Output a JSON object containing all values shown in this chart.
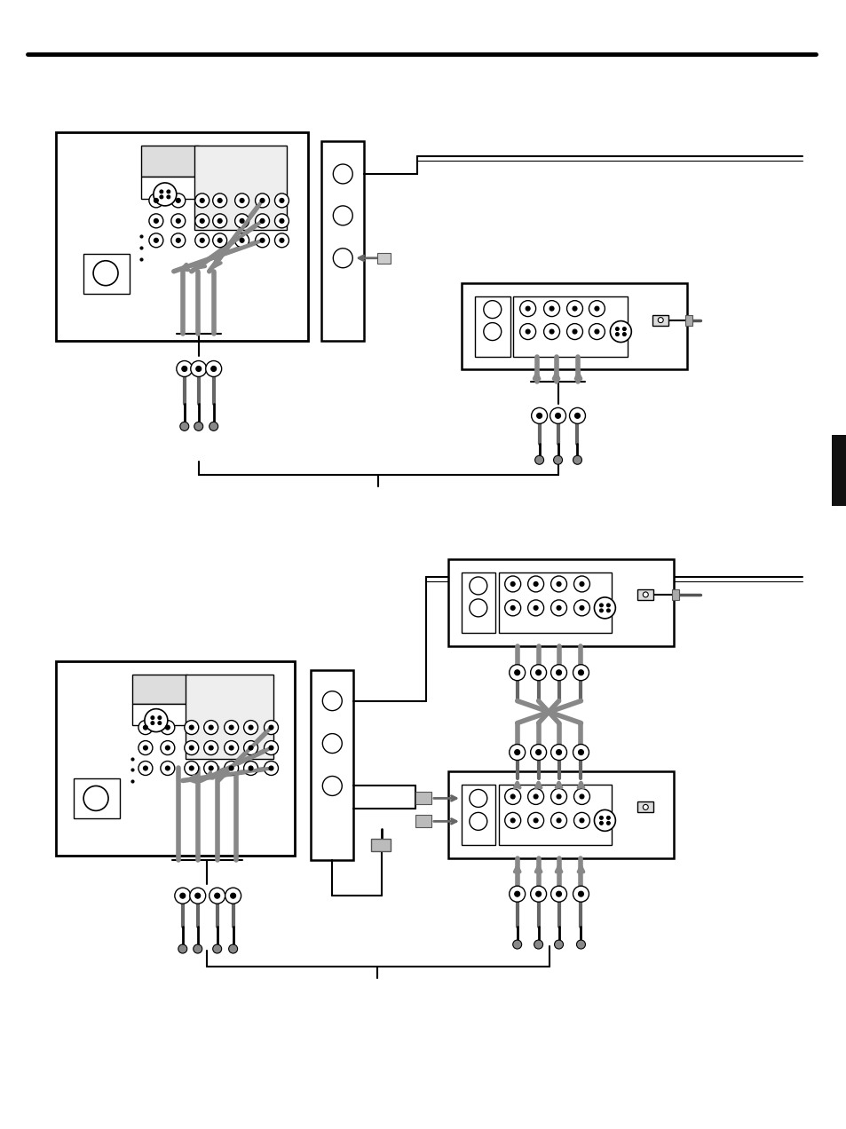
{
  "bg_color": "#ffffff",
  "lc": "#000000",
  "gc": "#888888",
  "page_width": 9.54,
  "page_height": 12.72
}
